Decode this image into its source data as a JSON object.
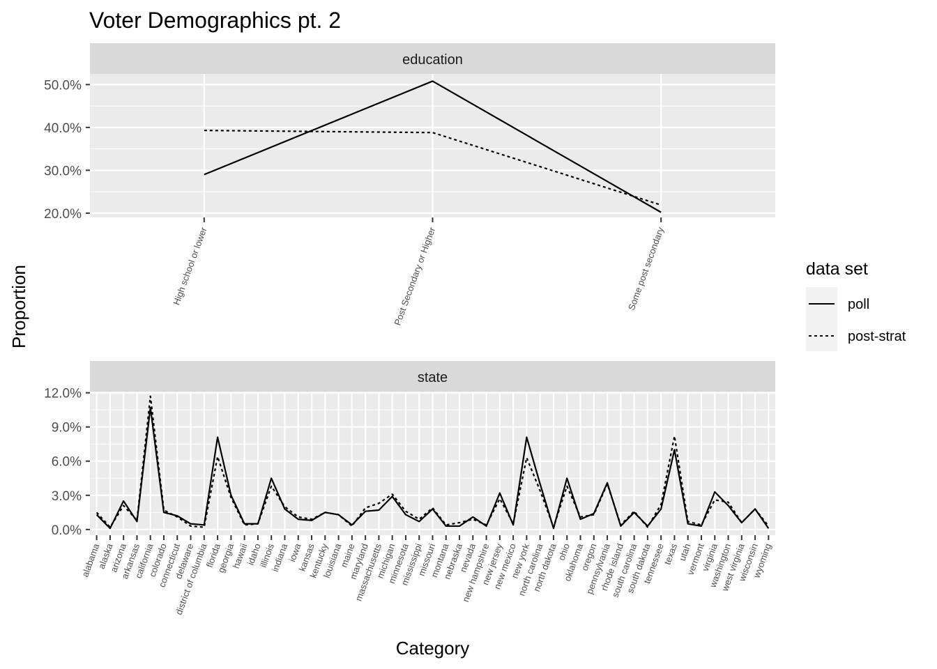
{
  "chart_data": [
    {
      "type": "line",
      "title": "Voter Demographics pt. 2",
      "facet": "education",
      "xlabel": "Category",
      "ylabel": "Proportion",
      "ylim": [
        0.19,
        0.525
      ],
      "yticks": [
        0.2,
        0.3,
        0.4,
        0.5
      ],
      "ytick_labels": [
        "20.0%",
        "30.0%",
        "40.0%",
        "50.0%"
      ],
      "categories": [
        "High school or lower",
        "Post Secondary or Higher",
        "Some post secondary"
      ],
      "series": [
        {
          "name": "poll",
          "linestyle": "solid",
          "values": [
            0.29,
            0.508,
            0.202
          ]
        },
        {
          "name": "post-strat",
          "linestyle": "dashed",
          "values": [
            0.393,
            0.388,
            0.219
          ]
        }
      ],
      "grid": true
    },
    {
      "type": "line",
      "facet": "state",
      "ylim": [
        -0.005,
        0.121
      ],
      "yticks": [
        0,
        0.03,
        0.06,
        0.09,
        0.12
      ],
      "ytick_labels": [
        "0.0%",
        "3.0%",
        "6.0%",
        "9.0%",
        "12.0%"
      ],
      "categories": [
        "alabama",
        "alaska",
        "arizona",
        "arkansas",
        "california",
        "colorado",
        "connecticut",
        "delaware",
        "district of columbia",
        "florida",
        "georgia",
        "hawaii",
        "idaho",
        "illinois",
        "indiana",
        "iowa",
        "kansas",
        "kentucky",
        "louisiana",
        "maine",
        "maryland",
        "massachusetts",
        "michigan",
        "minnesota",
        "mississippi",
        "missouri",
        "montana",
        "nebraska",
        "nevada",
        "new hampshire",
        "new jersey",
        "new mexico",
        "new york",
        "north carolina",
        "north dakota",
        "ohio",
        "oklahoma",
        "oregon",
        "pennsylvania",
        "rhode island",
        "south carolina",
        "south dakota",
        "tennessee",
        "texas",
        "utah",
        "vermont",
        "virginia",
        "washington",
        "west virginia",
        "wisconsin",
        "wyoming"
      ],
      "series": [
        {
          "name": "poll",
          "linestyle": "solid",
          "values": [
            0.013,
            0.001,
            0.025,
            0.007,
            0.107,
            0.015,
            0.012,
            0.005,
            0.004,
            0.081,
            0.03,
            0.005,
            0.005,
            0.045,
            0.018,
            0.009,
            0.008,
            0.015,
            0.013,
            0.004,
            0.016,
            0.017,
            0.029,
            0.013,
            0.007,
            0.018,
            0.003,
            0.003,
            0.011,
            0.003,
            0.032,
            0.004,
            0.081,
            0.04,
            0.001,
            0.045,
            0.009,
            0.014,
            0.041,
            0.003,
            0.015,
            0.003,
            0.018,
            0.07,
            0.005,
            0.003,
            0.033,
            0.021,
            0.006,
            0.018,
            0.001
          ]
        },
        {
          "name": "post-strat",
          "linestyle": "dashed",
          "values": [
            0.015,
            0.002,
            0.021,
            0.008,
            0.117,
            0.017,
            0.011,
            0.003,
            0.002,
            0.064,
            0.028,
            0.004,
            0.005,
            0.038,
            0.02,
            0.011,
            0.009,
            0.015,
            0.013,
            0.003,
            0.019,
            0.023,
            0.031,
            0.016,
            0.009,
            0.019,
            0.004,
            0.006,
            0.009,
            0.004,
            0.027,
            0.005,
            0.063,
            0.034,
            0.002,
            0.038,
            0.011,
            0.013,
            0.04,
            0.004,
            0.016,
            0.002,
            0.022,
            0.082,
            0.007,
            0.004,
            0.026,
            0.024,
            0.006,
            0.018,
            0.003
          ]
        }
      ],
      "grid": true
    }
  ],
  "legend": {
    "title": "data set",
    "placement": "right",
    "items": [
      {
        "label": "poll",
        "linestyle": "solid"
      },
      {
        "label": "post-strat",
        "linestyle": "dashed"
      }
    ]
  },
  "colors": {
    "panel_bg": "#ebebeb",
    "strip_bg": "#d9d9d9",
    "grid_major": "#ffffff",
    "line": "#000000"
  }
}
